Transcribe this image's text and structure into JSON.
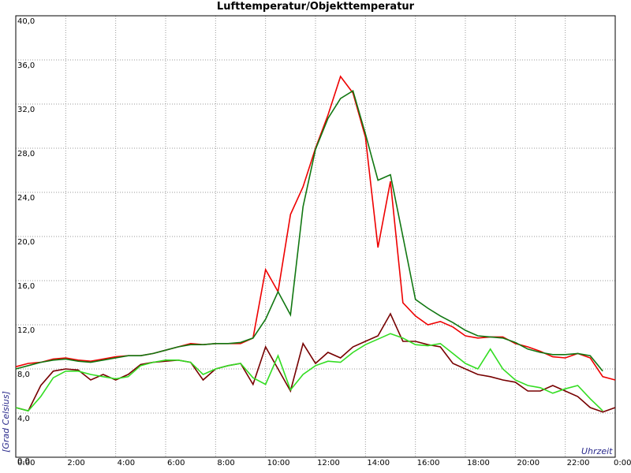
{
  "chart_data": {
    "type": "line",
    "title": "Lufttemperatur/Objekttemperatur",
    "y_label": "[Grad Celsius]",
    "x_label": "Uhrzeit",
    "x": [
      0,
      0.5,
      1,
      1.5,
      2,
      2.5,
      3,
      3.5,
      4,
      4.5,
      5,
      5.5,
      6,
      6.5,
      7,
      7.5,
      8,
      8.5,
      9,
      9.5,
      10,
      10.5,
      11,
      11.5,
      12,
      12.5,
      13,
      13.5,
      14,
      14.5,
      15,
      15.5,
      16,
      16.5,
      17,
      17.5,
      18,
      18.5,
      19,
      19.5,
      20,
      20.5,
      21,
      21.5,
      22,
      22.5,
      23,
      23.5,
      24
    ],
    "series": [
      {
        "color": "#ee0000",
        "values": [
          8.2,
          8.5,
          8.6,
          8.9,
          9.0,
          8.8,
          8.7,
          8.9,
          9.1,
          9.2,
          9.2,
          9.4,
          9.7,
          10.0,
          10.3,
          10.2,
          10.3,
          10.3,
          10.3,
          10.8,
          17.0,
          15.0,
          22.0,
          24.5,
          28.0,
          31.0,
          34.5,
          33.0,
          29.0,
          19.0,
          25.0,
          14.0,
          12.8,
          12.0,
          12.3,
          11.8,
          11.0,
          10.8,
          10.9,
          10.9,
          10.3,
          10.0,
          9.6,
          9.1,
          9.0,
          9.4,
          9.0,
          7.3,
          7.0
        ]
      },
      {
        "color": "#117711",
        "values": [
          8.0,
          8.3,
          8.6,
          8.8,
          8.9,
          8.7,
          8.6,
          8.8,
          9.0,
          9.2,
          9.2,
          9.4,
          9.7,
          10.0,
          10.2,
          10.2,
          10.3,
          10.3,
          10.4,
          10.8,
          12.5,
          15.0,
          12.9,
          22.7,
          27.9,
          30.7,
          32.5,
          33.2,
          29.3,
          25.1,
          25.6,
          20.0,
          14.3,
          13.5,
          12.8,
          12.2,
          11.5,
          11.0,
          10.9,
          10.8,
          10.4,
          9.8,
          9.5,
          9.3,
          9.3,
          9.4,
          9.2,
          7.8,
          null
        ]
      },
      {
        "color": "#770000",
        "values": [
          4.5,
          4.2,
          6.5,
          7.8,
          8.0,
          7.9,
          7.0,
          7.5,
          7.0,
          7.5,
          8.4,
          8.6,
          8.7,
          8.8,
          8.6,
          7.0,
          8.0,
          8.3,
          8.5,
          6.6,
          10.0,
          8.0,
          6.0,
          10.3,
          8.5,
          9.5,
          9.0,
          10.0,
          10.5,
          11.0,
          13.0,
          10.5,
          10.5,
          10.2,
          10.0,
          8.5,
          8.0,
          7.5,
          7.3,
          7.0,
          6.8,
          6.0,
          6.0,
          6.5,
          6.0,
          5.5,
          4.5,
          4.1,
          4.5
        ]
      },
      {
        "color": "#33dd22",
        "values": [
          4.5,
          4.2,
          5.5,
          7.2,
          7.8,
          7.8,
          7.5,
          7.3,
          7.1,
          7.3,
          8.3,
          8.6,
          8.8,
          8.8,
          8.6,
          7.5,
          8.0,
          8.3,
          8.5,
          7.2,
          6.6,
          9.2,
          6.1,
          7.5,
          8.3,
          8.7,
          8.6,
          9.5,
          10.2,
          10.7,
          11.2,
          10.8,
          10.2,
          10.1,
          10.3,
          9.4,
          8.5,
          8.0,
          9.8,
          8.0,
          7.0,
          6.5,
          6.3,
          5.8,
          6.2,
          6.5,
          5.3,
          4.2,
          null
        ]
      }
    ],
    "xlim": [
      0,
      24
    ],
    "xticks": [
      {
        "value": 0,
        "label": "0:00"
      },
      {
        "value": 2,
        "label": "2:00"
      },
      {
        "value": 4,
        "label": "4:00"
      },
      {
        "value": 6,
        "label": "6:00"
      },
      {
        "value": 8,
        "label": "8:00"
      },
      {
        "value": 10,
        "label": "10:00"
      },
      {
        "value": 12,
        "label": "12:00"
      },
      {
        "value": 14,
        "label": "14:00"
      },
      {
        "value": 16,
        "label": "16:00"
      },
      {
        "value": 18,
        "label": "18:00"
      },
      {
        "value": 20,
        "label": "20:00"
      },
      {
        "value": 22,
        "label": "22:00"
      },
      {
        "value": 24,
        "label": "0:00"
      }
    ],
    "ylim": [
      0,
      40
    ],
    "yticks": [
      {
        "value": 0,
        "label": "0,0"
      },
      {
        "value": 4,
        "label": "4,0"
      },
      {
        "value": 8,
        "label": "8,0"
      },
      {
        "value": 12,
        "label": "12,0"
      },
      {
        "value": 16,
        "label": "16,0"
      },
      {
        "value": 20,
        "label": "20,0"
      },
      {
        "value": 24,
        "label": "24,0"
      },
      {
        "value": 28,
        "label": "28,0"
      },
      {
        "value": 32,
        "label": "32,0"
      },
      {
        "value": 36,
        "label": "36,0"
      },
      {
        "value": 40,
        "label": "40,0"
      }
    ],
    "grid": true
  }
}
